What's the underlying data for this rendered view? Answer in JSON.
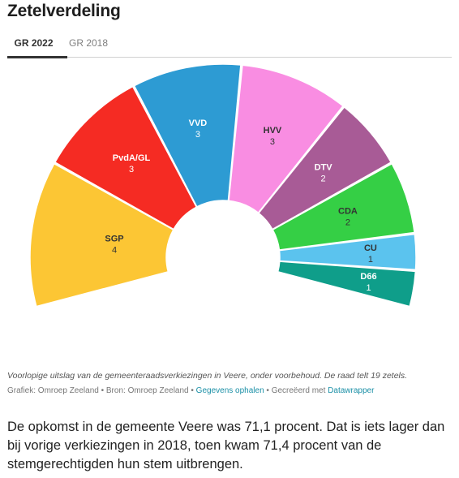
{
  "header": {
    "title": "Zetelverdeling"
  },
  "tabs": [
    {
      "label": "GR 2022",
      "active": true
    },
    {
      "label": "GR 2018",
      "active": false
    }
  ],
  "chart_data": {
    "type": "pie",
    "subtype": "parliament-semicircle",
    "title": "",
    "total_seats": 19,
    "parties": [
      {
        "name": "SGP",
        "seats": 4,
        "color": "#fcc634",
        "label_color": "#333333"
      },
      {
        "name": "PvdA/GL",
        "seats": 3,
        "color": "#f52b23",
        "label_color": "#ffffff"
      },
      {
        "name": "VVD",
        "seats": 3,
        "color": "#2d9bd3",
        "label_color": "#ffffff"
      },
      {
        "name": "HVV",
        "seats": 3,
        "color": "#f98de2",
        "label_color": "#333333"
      },
      {
        "name": "DTV",
        "seats": 2,
        "color": "#a85b96",
        "label_color": "#ffffff"
      },
      {
        "name": "CDA",
        "seats": 2,
        "color": "#35cf45",
        "label_color": "#333333"
      },
      {
        "name": "CU",
        "seats": 1,
        "color": "#5bc3ee",
        "label_color": "#333333"
      },
      {
        "name": "D66",
        "seats": 1,
        "color": "#0f9e8a",
        "label_color": "#ffffff"
      }
    ]
  },
  "caption": {
    "note": "Voorlopige uitslag van de gemeenteraadsverkiezingen in Veere, onder voorbehoud. De raad telt 19 zetels.",
    "graphic_prefix": "Grafiek: Omroep Zeeland • Bron: Omroep Zeeland • ",
    "get_data_link": "Gegevens ophalen",
    "created_prefix": " • Gecreëerd met ",
    "datawrapper_link": "Datawrapper"
  },
  "article": {
    "text": "De opkomst in de gemeente Veere was 71,1 procent. Dat is iets lager dan bij vorige verkiezingen in 2018, toen kwam 71,4 procent van de stemgerechtigden hun stem uitbrengen."
  }
}
